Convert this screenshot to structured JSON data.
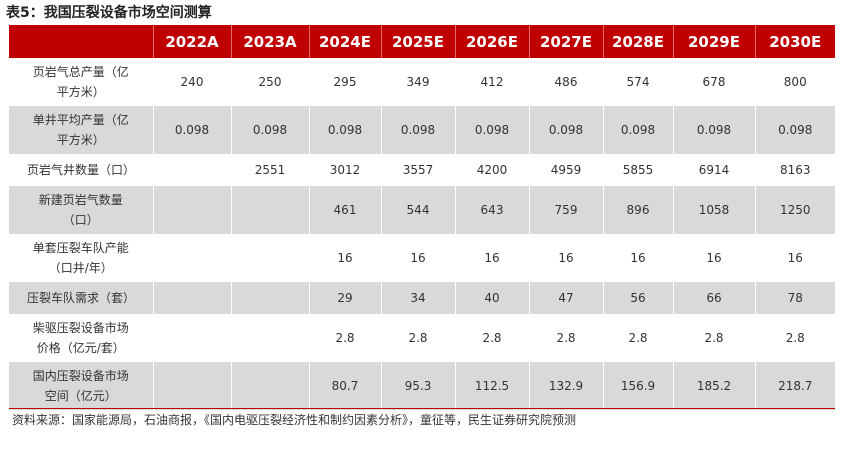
{
  "title": "表5：我国压裂设备市场空间测算",
  "header": [
    "",
    "2022A",
    "2023A",
    "2024E",
    "2025E",
    "2026E",
    "2027E",
    "2028E",
    "2029E",
    "2030E"
  ],
  "rows": [
    {
      "label": "页岩气总产量（亿平方米）",
      "values": [
        "240",
        "250",
        "295",
        "349",
        "412",
        "486",
        "574",
        "678",
        "800"
      ],
      "alt": false,
      "short": false
    },
    {
      "label": "单井平均产量（亿平方米）",
      "values": [
        "0.098",
        "0.098",
        "0.098",
        "0.098",
        "0.098",
        "0.098",
        "0.098",
        "0.098",
        "0.098"
      ],
      "alt": true,
      "short": false
    },
    {
      "label": "页岩气井数量（口）",
      "values": [
        "",
        "2551",
        "3012",
        "3557",
        "4200",
        "4959",
        "5855",
        "6914",
        "8163"
      ],
      "alt": false,
      "short": true
    },
    {
      "label": "新建页岩气数量（口）",
      "values": [
        "",
        "",
        "461",
        "544",
        "643",
        "759",
        "896",
        "1058",
        "1250"
      ],
      "alt": true,
      "short": false
    },
    {
      "label": "单套压裂车队产能（口井/年）",
      "values": [
        "",
        "",
        "16",
        "16",
        "16",
        "16",
        "16",
        "16",
        "16"
      ],
      "alt": false,
      "short": false
    },
    {
      "label": "压裂车队需求（套）",
      "values": [
        "",
        "",
        "29",
        "34",
        "40",
        "47",
        "56",
        "66",
        "78"
      ],
      "alt": true,
      "short": true
    },
    {
      "label": "柴驱压裂设备市场价格（亿元/套）",
      "values": [
        "",
        "",
        "2.8",
        "2.8",
        "2.8",
        "2.8",
        "2.8",
        "2.8",
        "2.8"
      ],
      "alt": false,
      "short": false
    },
    {
      "label": "国内压裂设备市场空间（亿元）",
      "values": [
        "",
        "",
        "80.7",
        "95.3",
        "112.5",
        "132.9",
        "156.9",
        "185.2",
        "218.7"
      ],
      "alt": true,
      "short": false
    }
  ],
  "source": "资料来源：国家能源局，石油商报，《国内电驱压裂经济性和制约因素分析》，童征等，民生证券研究院预测",
  "colors": {
    "header_bg": "#c00000",
    "alt_row": "#d9d9d9"
  }
}
